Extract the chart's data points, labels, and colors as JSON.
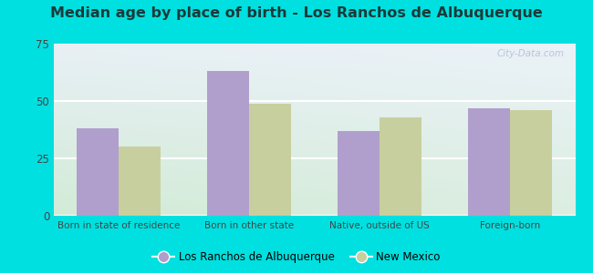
{
  "title": "Median age by place of birth - Los Ranchos de Albuquerque",
  "categories": [
    "Born in state of residence",
    "Born in other state",
    "Native, outside of US",
    "Foreign-born"
  ],
  "values_city": [
    38,
    63,
    37,
    47
  ],
  "values_state": [
    30,
    49,
    43,
    46
  ],
  "color_city": "#b09fcc",
  "color_state": "#c8cf9f",
  "legend_city": "Los Ranchos de Albuquerque",
  "legend_state": "New Mexico",
  "ylim": [
    0,
    75
  ],
  "yticks": [
    0,
    25,
    50,
    75
  ],
  "background_outer": "#00e0e0",
  "background_top_right": "#e8eff5",
  "background_bottom_left": "#d4ecd8",
  "grid_color": "#ffffff",
  "bar_width": 0.32,
  "title_fontsize": 11.5,
  "watermark": "City-Data.com"
}
